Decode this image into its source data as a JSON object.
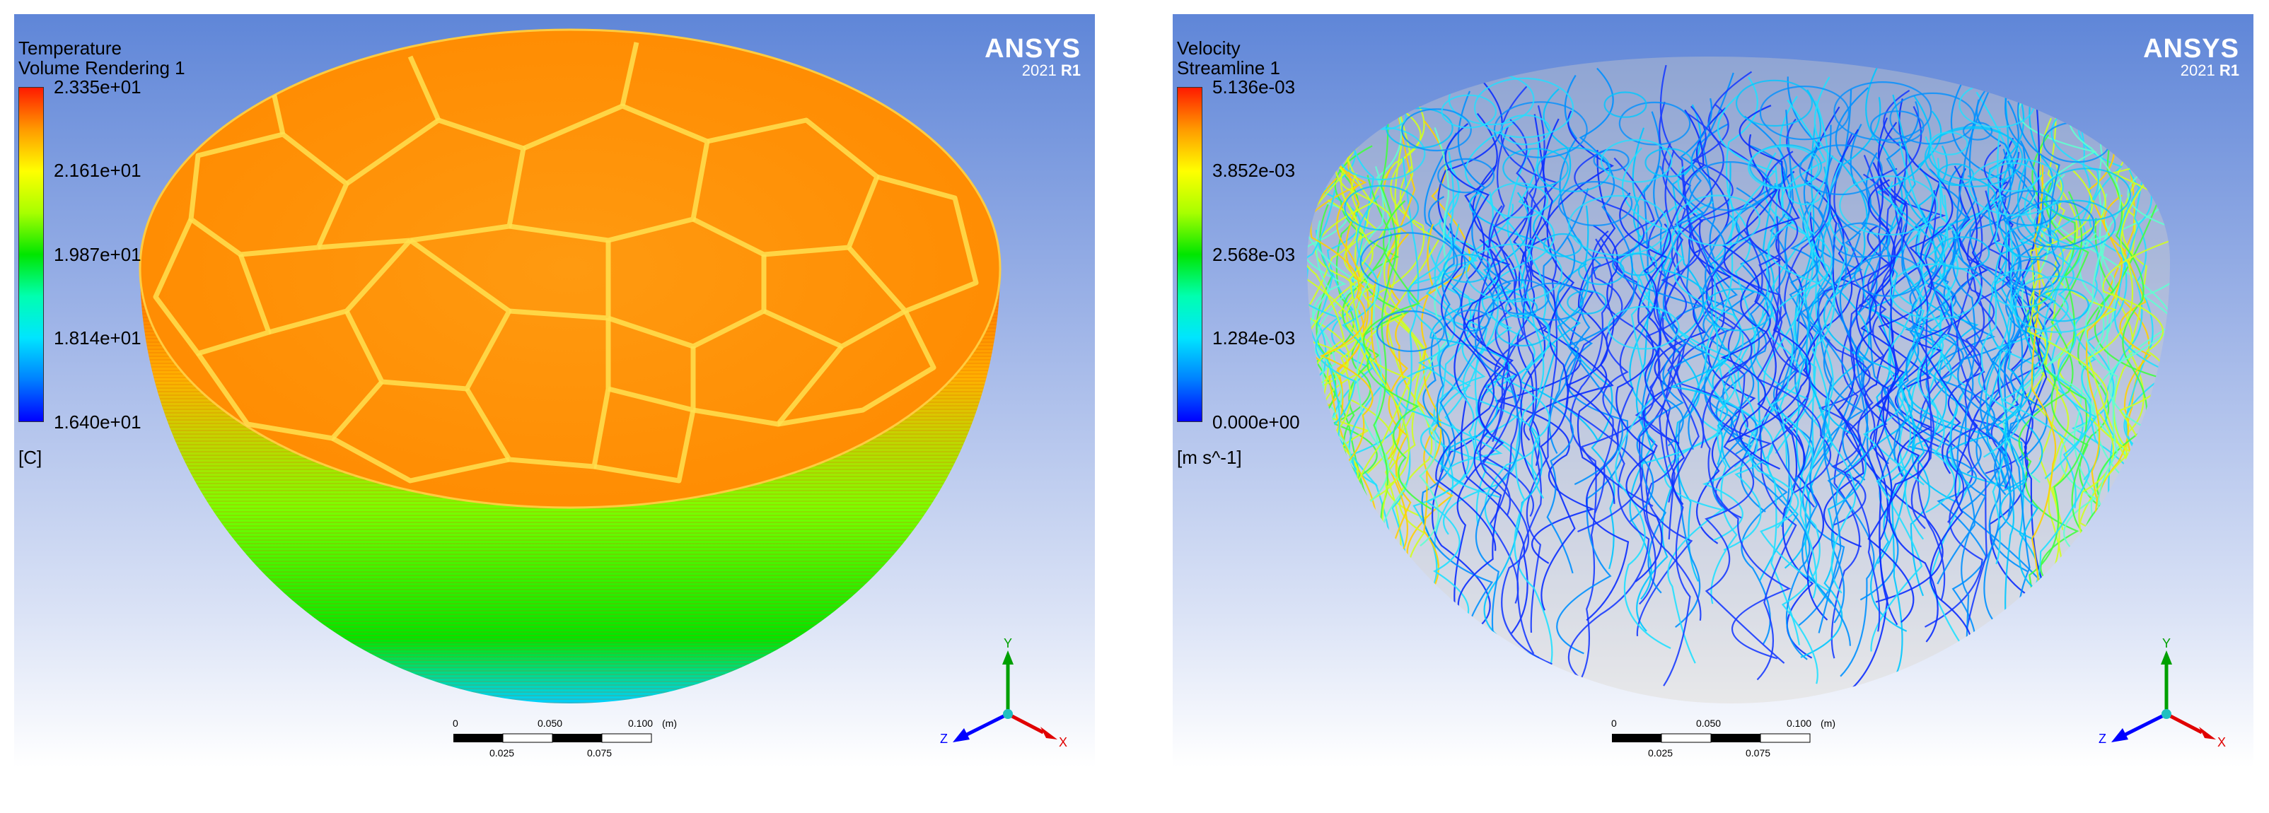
{
  "left_panel": {
    "variable": "Temperature",
    "object": "Volume Rendering 1",
    "legend_ticks": [
      "2.335e+01",
      "2.161e+01",
      "1.987e+01",
      "1.814e+01",
      "1.640e+01"
    ],
    "unit": "[C]",
    "brand": {
      "name": "ANSYS",
      "version_year": "2021",
      "version_release": "R1"
    },
    "scale": {
      "top_labels": [
        "0",
        "0.050",
        "0.100"
      ],
      "unit": "(m)",
      "bottom_labels": [
        "0.025",
        "0.075"
      ]
    },
    "axes": {
      "y": "Y",
      "z": "Z",
      "x": "X"
    }
  },
  "right_panel": {
    "variable": "Velocity",
    "object": "Streamline 1",
    "legend_ticks": [
      "5.136e-03",
      "3.852e-03",
      "2.568e-03",
      "1.284e-03",
      "0.000e+00"
    ],
    "unit": "[m s^-1]",
    "brand": {
      "name": "ANSYS",
      "version_year": "2021",
      "version_release": "R1"
    },
    "scale": {
      "top_labels": [
        "0",
        "0.050",
        "0.100"
      ],
      "unit": "(m)",
      "bottom_labels": [
        "0.025",
        "0.075"
      ]
    },
    "axes": {
      "y": "Y",
      "z": "Z",
      "x": "X"
    }
  },
  "colors": {
    "background_top": "#5f86d8",
    "background_bottom": "#ffffff",
    "colormap": [
      "#ff1a00",
      "#ffff00",
      "#00e600",
      "#00e5ff",
      "#0000ff"
    ],
    "axis_y": "#00a000",
    "axis_z": "#0000ff",
    "axis_x": "#e00000"
  }
}
